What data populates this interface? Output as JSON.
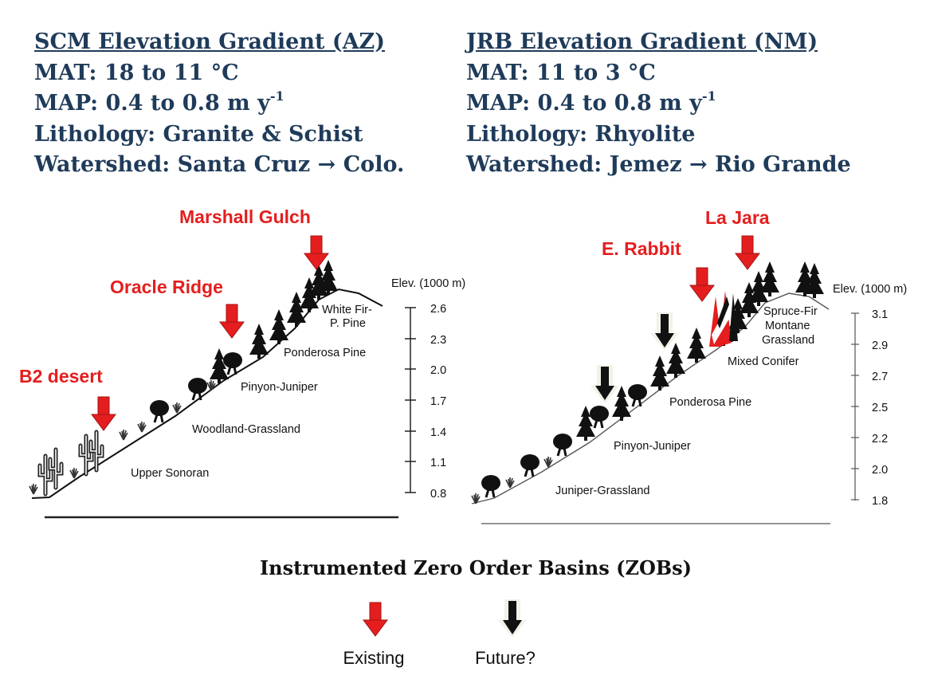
{
  "left_header": {
    "title": "SCM Elevation Gradient (AZ)",
    "mat": "MAT:  18 to 11 °C",
    "map_prefix": "MAP:  0.4 to 0.8 m y",
    "map_exp": "-1",
    "lithology": "Lithology:  Granite & Schist",
    "watershed": "Watershed:  Santa Cruz → Colo."
  },
  "right_header": {
    "title": "JRB Elevation Gradient (NM)",
    "mat": "MAT:  11 to 3 °C",
    "map_prefix": "MAP:  0.4 to 0.8 m y",
    "map_exp": "-1",
    "lithology": "Lithology:  Rhyolite",
    "watershed": "Watershed:  Jemez → Rio Grande"
  },
  "left_diagram": {
    "axis_label": "Elev. (1000 m)",
    "ticks": [
      "2.6",
      "2.3",
      "2.0",
      "1.7",
      "1.4",
      "1.1",
      "0.8"
    ],
    "zones": [
      "White Fir-",
      "P. Pine",
      "Ponderosa Pine",
      "Pinyon-Juniper",
      "Woodland-Grassland",
      "Upper Sonoran"
    ],
    "sites": [
      "Marshall Gulch",
      "Oracle Ridge",
      "B2 desert"
    ]
  },
  "right_diagram": {
    "axis_label": "Elev. (1000 m)",
    "ticks": [
      "3.1",
      "2.9",
      "2.7",
      "2.5",
      "2.2",
      "2.0",
      "1.8"
    ],
    "zones": [
      "Spruce-Fir",
      "Montane",
      "Grassland",
      "Mixed Conifer",
      "Ponderosa Pine",
      "Pinyon-Juniper",
      "Juniper-Grassland"
    ],
    "sites": [
      "La Jara",
      "E. Rabbit"
    ]
  },
  "legend": {
    "title": "Instrumented Zero Order Basins (ZOBs)",
    "existing_label": "Existing",
    "future_label": "Future?"
  },
  "colors": {
    "header_text": "#1f3b5a",
    "site_label": "#e41e1e",
    "existing_arrow": "#e41e1e",
    "future_arrow": "#111111"
  }
}
